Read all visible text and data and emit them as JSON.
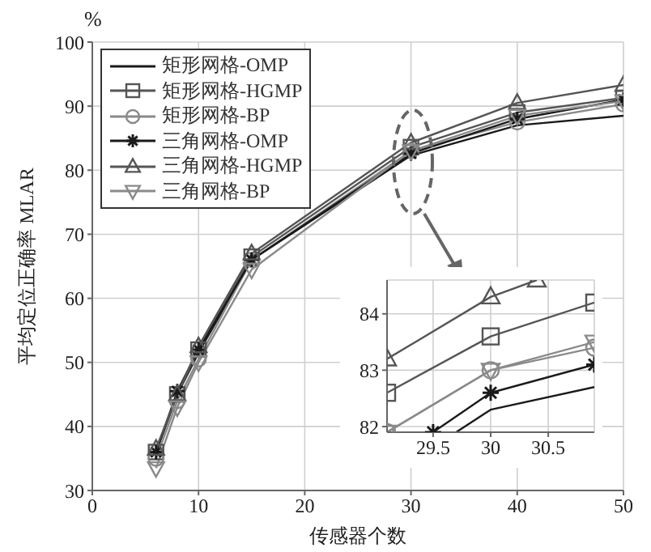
{
  "chart_data": [
    {
      "type": "line",
      "xlabel": "传感器个数",
      "ylabel": "平均定位正确率  MLAR",
      "annotations": [
        "%"
      ],
      "xlim": [
        0,
        50
      ],
      "xticks": [
        0,
        10,
        20,
        30,
        40,
        50
      ],
      "ylim": [
        30,
        100
      ],
      "yticks": [
        30,
        40,
        50,
        60,
        70,
        80,
        90,
        100
      ],
      "grid": true,
      "legend": "top left",
      "x": [
        6,
        8,
        10,
        15,
        30,
        40,
        50
      ],
      "series": [
        {
          "name": "矩形网格-OMP",
          "color": "#1a1a1a",
          "marker": "none",
          "values": [
            36,
            45,
            51.5,
            66,
            82.3,
            87,
            88.5
          ]
        },
        {
          "name": "矩形网格-HGMP",
          "color": "#555555",
          "marker": "square",
          "values": [
            36,
            45,
            52,
            66.5,
            83.6,
            89,
            91.3
          ]
        },
        {
          "name": "矩形网格-BP",
          "color": "#8a8a8a",
          "marker": "circle",
          "values": [
            35,
            44,
            50.5,
            66,
            83,
            87.5,
            90.3
          ]
        },
        {
          "name": "三角网格-OMP",
          "color": "#1a1a1a",
          "marker": "cross",
          "values": [
            36,
            45.5,
            52,
            66,
            82.6,
            88,
            91
          ]
        },
        {
          "name": "三角网格-HGMP",
          "color": "#555555",
          "marker": "triangle",
          "values": [
            36.5,
            45,
            52.5,
            67,
            84.3,
            90.5,
            93.3
          ]
        },
        {
          "name": "三角网格-BP",
          "color": "#8a8a8a",
          "marker": "triangle-down",
          "values": [
            33.5,
            43,
            50,
            64.5,
            83,
            88.5,
            90.8
          ]
        }
      ]
    },
    {
      "type": "line",
      "xlim": [
        29.1,
        30.9
      ],
      "xticks": [
        29.5,
        30,
        30.5
      ],
      "ylim": [
        81.9,
        84.6
      ],
      "yticks": [
        82,
        83,
        84
      ],
      "grid": true,
      "series": [
        {
          "color": "#1a1a1a",
          "marker": "none",
          "x": [
            29.7,
            30,
            30.9
          ],
          "values": [
            81.9,
            82.3,
            82.7
          ]
        },
        {
          "color": "#555555",
          "marker": "square",
          "x": [
            29.1,
            30,
            30.9
          ],
          "values": [
            82.6,
            83.6,
            84.2
          ]
        },
        {
          "color": "#8a8a8a",
          "marker": "circle",
          "x": [
            29.1,
            30,
            30.9
          ],
          "values": [
            81.9,
            83,
            83.4
          ]
        },
        {
          "color": "#1a1a1a",
          "marker": "cross",
          "x": [
            29.5,
            30,
            30.9
          ],
          "values": [
            81.9,
            82.6,
            83.1
          ]
        },
        {
          "color": "#555555",
          "marker": "triangle",
          "x": [
            29.1,
            30,
            30.4
          ],
          "values": [
            83.2,
            84.3,
            84.6
          ]
        },
        {
          "color": "#8a8a8a",
          "marker": "triangle-down",
          "x": [
            29.1,
            30,
            30.9
          ],
          "values": [
            81.9,
            83,
            83.5
          ]
        }
      ]
    }
  ]
}
